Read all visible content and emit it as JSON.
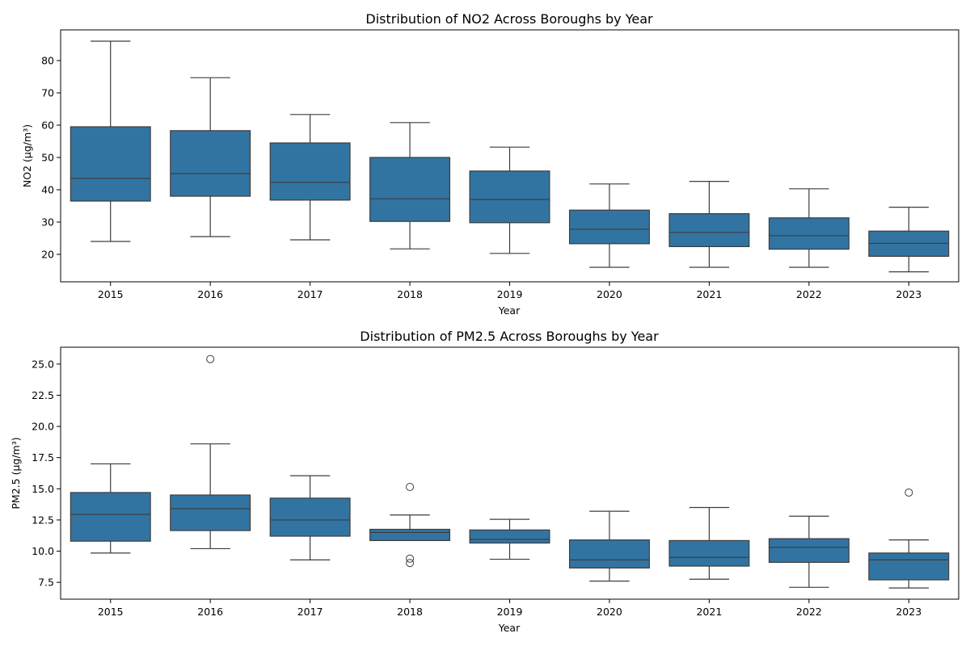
{
  "chart_data": [
    {
      "type": "box",
      "title": "Distribution of NO2 Across Boroughs by Year",
      "xlabel": "Year",
      "ylabel": "NO2 (µg/m³)",
      "categories": [
        "2015",
        "2016",
        "2017",
        "2018",
        "2019",
        "2020",
        "2021",
        "2022",
        "2023"
      ],
      "ylim": [
        11.5,
        89.5
      ],
      "yticks": [
        20,
        30,
        40,
        50,
        60,
        70,
        80
      ],
      "ytick_labels": [
        "20",
        "30",
        "40",
        "50",
        "60",
        "70",
        "80"
      ],
      "box_color": "#3274a1",
      "line_color": "#3d3d3d",
      "boxes": [
        {
          "whislo": 24.0,
          "q1": 36.5,
          "med": 43.5,
          "q3": 59.5,
          "whishi": 86.0,
          "fliers": []
        },
        {
          "whislo": 25.5,
          "q1": 38.0,
          "med": 45.0,
          "q3": 58.3,
          "whishi": 74.7,
          "fliers": []
        },
        {
          "whislo": 24.5,
          "q1": 36.8,
          "med": 42.3,
          "q3": 54.5,
          "whishi": 63.3,
          "fliers": []
        },
        {
          "whislo": 21.7,
          "q1": 30.2,
          "med": 37.2,
          "q3": 50.0,
          "whishi": 60.8,
          "fliers": []
        },
        {
          "whislo": 20.3,
          "q1": 29.8,
          "med": 37.0,
          "q3": 45.8,
          "whishi": 53.2,
          "fliers": []
        },
        {
          "whislo": 16.0,
          "q1": 23.3,
          "med": 27.8,
          "q3": 33.7,
          "whishi": 41.8,
          "fliers": []
        },
        {
          "whislo": 16.0,
          "q1": 22.4,
          "med": 26.8,
          "q3": 32.6,
          "whishi": 42.6,
          "fliers": []
        },
        {
          "whislo": 16.0,
          "q1": 21.6,
          "med": 25.8,
          "q3": 31.3,
          "whishi": 40.3,
          "fliers": []
        },
        {
          "whislo": 14.6,
          "q1": 19.4,
          "med": 23.4,
          "q3": 27.2,
          "whishi": 34.6,
          "fliers": []
        }
      ]
    },
    {
      "type": "box",
      "title": "Distribution of PM2.5 Across Boroughs by Year",
      "xlabel": "Year",
      "ylabel": "PM2.5 (µg/m³)",
      "categories": [
        "2015",
        "2016",
        "2017",
        "2018",
        "2019",
        "2020",
        "2021",
        "2022",
        "2023"
      ],
      "ylim": [
        6.15,
        26.35
      ],
      "yticks": [
        7.5,
        10.0,
        12.5,
        15.0,
        17.5,
        20.0,
        22.5,
        25.0
      ],
      "ytick_labels": [
        "7.5",
        "10.0",
        "12.5",
        "15.0",
        "17.5",
        "20.0",
        "22.5",
        "25.0"
      ],
      "box_color": "#3274a1",
      "line_color": "#3d3d3d",
      "boxes": [
        {
          "whislo": 9.85,
          "q1": 10.8,
          "med": 12.95,
          "q3": 14.7,
          "whishi": 17.0,
          "fliers": []
        },
        {
          "whislo": 10.2,
          "q1": 11.65,
          "med": 13.4,
          "q3": 14.5,
          "whishi": 18.6,
          "fliers": [
            25.4
          ]
        },
        {
          "whislo": 9.3,
          "q1": 11.2,
          "med": 12.5,
          "q3": 14.25,
          "whishi": 16.05,
          "fliers": []
        },
        {
          "whislo": 10.85,
          "q1": 10.85,
          "med": 11.5,
          "q3": 11.75,
          "whishi": 12.9,
          "fliers": [
            15.15,
            9.4,
            9.05
          ]
        },
        {
          "whislo": 9.35,
          "q1": 10.65,
          "med": 10.95,
          "q3": 11.7,
          "whishi": 12.55,
          "fliers": []
        },
        {
          "whislo": 7.6,
          "q1": 8.65,
          "med": 9.3,
          "q3": 10.9,
          "whishi": 13.2,
          "fliers": []
        },
        {
          "whislo": 7.75,
          "q1": 8.8,
          "med": 9.5,
          "q3": 10.85,
          "whishi": 13.5,
          "fliers": []
        },
        {
          "whislo": 7.1,
          "q1": 9.1,
          "med": 10.3,
          "q3": 11.0,
          "whishi": 12.8,
          "fliers": []
        },
        {
          "whislo": 7.05,
          "q1": 7.7,
          "med": 9.3,
          "q3": 9.85,
          "whishi": 10.9,
          "fliers": [
            14.7
          ]
        }
      ]
    }
  ]
}
